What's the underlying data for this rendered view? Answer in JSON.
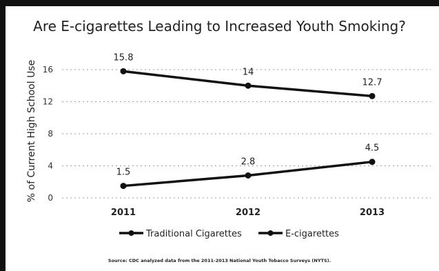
{
  "chart_data": {
    "type": "line",
    "title": "Are E-cigarettes Leading to Increased Youth Smoking?",
    "ylabel": "% of Current High School Use",
    "xlabel": "",
    "categories": [
      "2011",
      "2012",
      "2013"
    ],
    "yticks": [
      "0",
      "4",
      "8",
      "12",
      "16"
    ],
    "ylim": [
      0,
      17
    ],
    "grid": "horizontal dotted",
    "legend_position": "bottom",
    "series": [
      {
        "name": "Traditional Cigarettes",
        "values": [
          15.8,
          14,
          12.7
        ],
        "labels": [
          "15.8",
          "14",
          "12.7"
        ],
        "color": "#111111"
      },
      {
        "name": "E-cigarettes",
        "values": [
          1.5,
          2.8,
          4.5
        ],
        "labels": [
          "1.5",
          "2.8",
          "4.5"
        ],
        "color": "#111111"
      }
    ],
    "source": "Source: CDC analyzed data from the 2011-2013 National Youth Tobacco Surveys (NYTS)."
  }
}
